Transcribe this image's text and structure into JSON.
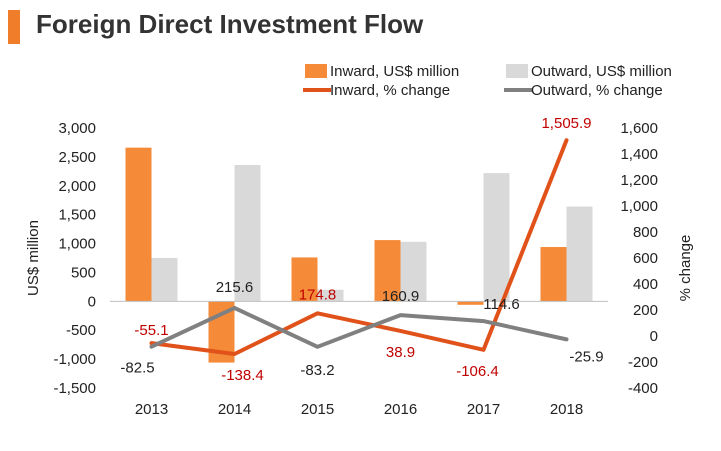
{
  "title": "Foreign Direct Investment Flow",
  "colors": {
    "accent": "#f07d2a",
    "inward_bar": "#f58b38",
    "outward_bar": "#d9d9d9",
    "inward_line": "#e0521a",
    "outward_line": "#808080",
    "inward_label": "#c00000",
    "outward_label": "#222222"
  },
  "chart_data": {
    "type": "bar+line",
    "categories": [
      "2013",
      "2014",
      "2015",
      "2016",
      "2017",
      "2018"
    ],
    "series": [
      {
        "name": "Inward, US$ million",
        "type": "bar",
        "axis": "left",
        "values": [
          2660,
          -1060,
          760,
          1060,
          -60,
          940
        ]
      },
      {
        "name": "Outward, US$ million",
        "type": "bar",
        "axis": "left",
        "values": [
          750,
          2360,
          200,
          1030,
          2220,
          1640
        ]
      },
      {
        "name": "Inward, % change",
        "type": "line",
        "axis": "right",
        "values": [
          -55.1,
          -138.4,
          174.8,
          38.9,
          -106.4,
          1505.9
        ],
        "labels": [
          "-55.1",
          "-138.4",
          "174.8",
          "38.9",
          "-106.4",
          "1,505.9"
        ]
      },
      {
        "name": "Outward, % change",
        "type": "line",
        "axis": "right",
        "values": [
          -82.5,
          215.6,
          -83.2,
          160.9,
          114.6,
          -25.9
        ],
        "labels": [
          "-82.5",
          "215.6",
          "-83.2",
          "160.9",
          "114.6",
          "-25.9"
        ]
      }
    ],
    "ylabel": "US$ million",
    "y2label": "% change",
    "ylim": [
      -1500,
      3000
    ],
    "y2lim": [
      -400,
      1600
    ],
    "yticks": [
      "3,000",
      "2,500",
      "2,000",
      "1,500",
      "1,000",
      "500",
      "0",
      "-500",
      "-1,000",
      "-1,500"
    ],
    "y2ticks": [
      "1,600",
      "1,400",
      "1,200",
      "1,000",
      "800",
      "600",
      "400",
      "200",
      "0",
      "-200",
      "-400"
    ],
    "legend": "top"
  }
}
